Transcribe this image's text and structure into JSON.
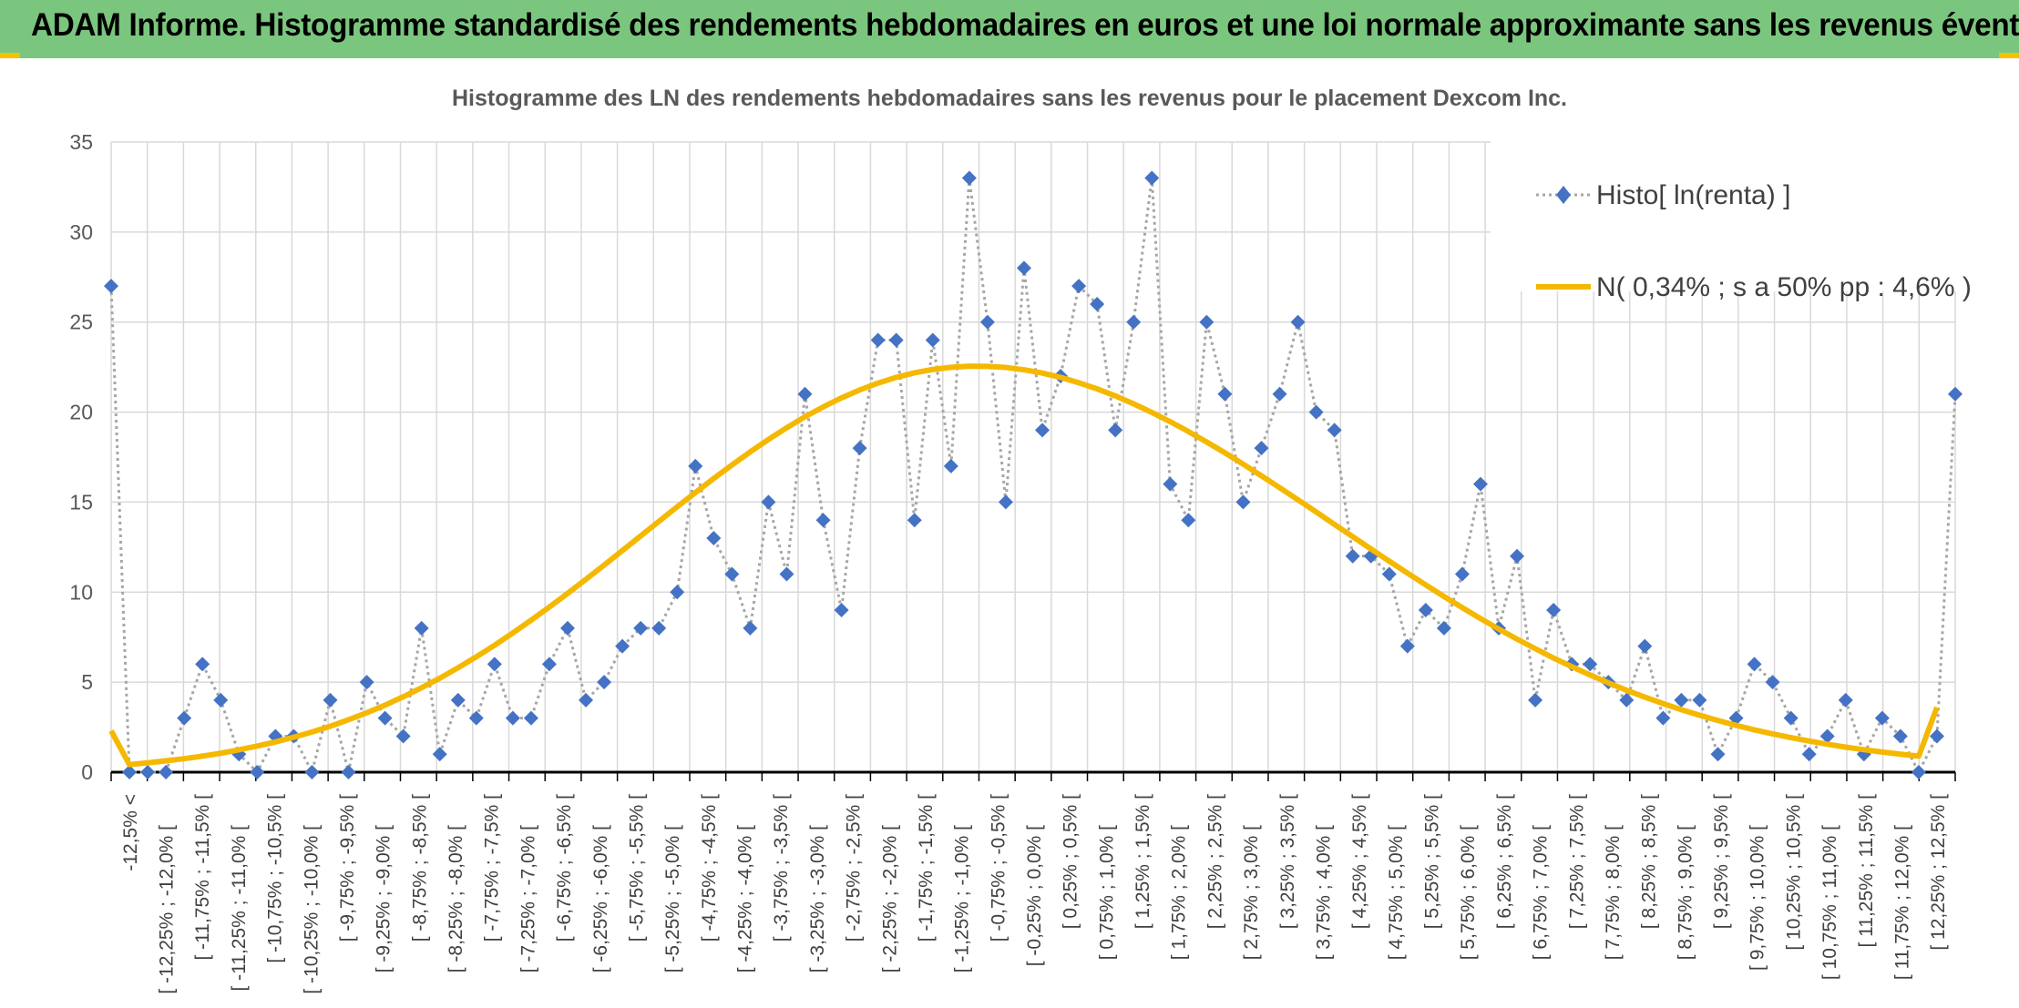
{
  "banner": {
    "title": "ADAM Informe. Histogramme standardisé des rendements hebdomadaires en euros et une loi normale approximante sans les revenus éventuels"
  },
  "colors": {
    "banner": "#7bc67e",
    "accent_corner": "#f2c200",
    "histogram_marker": "#4472c4",
    "histogram_line": "#a6a6a6",
    "normal_curve": "#f5b800",
    "grid": "#d9d9d9"
  },
  "chart_data": {
    "type": "line",
    "title": "Histogramme des LN des rendements hebdomadaires sans les revenus pour le placement Dexcom Inc.",
    "xlabel": "",
    "ylabel": "",
    "ylim": [
      0,
      35
    ],
    "yticks": [
      0,
      5,
      10,
      15,
      20,
      25,
      30,
      35
    ],
    "grid": true,
    "legend_position": "top-right",
    "x_tick_labels": [
      "-12,5% <",
      "[ -12,25% ; -12,0% [",
      "[ -11,75% ; -11,5% [",
      "[ -11,25% ; -11,0% [",
      "[ -10,75% ; -10,5% [",
      "[ -10,25% ; -10,0% [",
      "[ -9,75% ; -9,5% [",
      "[ -9,25% ; -9,0% [",
      "[ -8,75% ; -8,5% [",
      "[ -8,25% ; -8,0% [",
      "[ -7,75% ; -7,5% [",
      "[ -7,25% ; -7,0% [",
      "[ -6,75% ; -6,5% [",
      "[ -6,25% ; -6,0% [",
      "[ -5,75% ; -5,5% [",
      "[ -5,25% ; -5,0% [",
      "[ -4,75% ; -4,5% [",
      "[ -4,25% ; -4,0% [",
      "[ -3,75% ; -3,5% [",
      "[ -3,25% ; -3,0% [",
      "[ -2,75% ; -2,5% [",
      "[ -2,25% ; -2,0% [",
      "[ -1,75% ; -1,5% [",
      "[ -1,25% ; -1,0% [",
      "[ -0,75% ; -0,5% [",
      "[ -0,25% ; 0,0% [",
      "[ 0,25% ; 0,5% [",
      "[ 0,75% ; 1,0% [",
      "[ 1,25% ; 1,5% [",
      "[ 1,75% ; 2,0% [",
      "[ 2,25% ; 2,5% [",
      "[ 2,75% ; 3,0% [",
      "[ 3,25% ; 3,5% [",
      "[ 3,75% ; 4,0% [",
      "[ 4,25% ; 4,5% [",
      "[ 4,75% ; 5,0% [",
      "[ 5,25% ; 5,5% [",
      "[ 5,75% ; 6,0% [",
      "[ 6,25% ; 6,5% [",
      "[ 6,75% ; 7,0% [",
      "[ 7,25% ; 7,5% [",
      "[ 7,75% ; 8,0% [",
      "[ 8,25% ; 8,5% [",
      "[ 8,75% ; 9,0% [",
      "[ 9,25% ; 9,5% [",
      "[ 9,75% ; 10,0% [",
      "[ 10,25% ; 10,5% [",
      "[ 10,75% ; 11,0% [",
      "[ 11,25% ; 11,5% [",
      "[ 11,75% ; 12,0% [",
      "[ 12,25% ; 12,5% ["
    ],
    "series": [
      {
        "name": "Histo[ ln(renta) ]",
        "kind": "markers-dotted",
        "values": [
          27,
          0,
          0,
          0,
          3,
          6,
          4,
          1,
          0,
          2,
          2,
          0,
          4,
          0,
          5,
          3,
          2,
          8,
          1,
          4,
          3,
          6,
          3,
          3,
          6,
          8,
          4,
          5,
          7,
          8,
          8,
          10,
          17,
          13,
          11,
          8,
          15,
          11,
          21,
          14,
          9,
          18,
          24,
          24,
          14,
          24,
          17,
          33,
          25,
          15,
          28,
          19,
          22,
          27,
          26,
          19,
          25,
          33,
          16,
          14,
          25,
          21,
          15,
          18,
          21,
          25,
          20,
          19,
          12,
          12,
          11,
          7,
          9,
          8,
          11,
          16,
          8,
          12,
          4,
          9,
          6,
          6,
          5,
          4,
          7,
          3,
          4,
          4,
          1,
          3,
          6,
          5,
          3,
          1,
          2,
          4,
          1,
          3,
          2,
          0,
          2,
          21
        ]
      },
      {
        "name": "N( 0,34% ; s a 50% pp : 4,6% )",
        "kind": "line",
        "values": [
          2.3,
          0.42,
          0.52,
          0.63,
          0.75,
          0.89,
          1.05,
          1.24,
          1.45,
          1.68,
          1.94,
          2.23,
          2.55,
          2.91,
          3.3,
          3.72,
          4.19,
          4.69,
          5.22,
          5.8,
          6.41,
          7.05,
          7.73,
          8.44,
          9.17,
          9.93,
          10.71,
          11.5,
          12.31,
          13.12,
          13.93,
          14.74,
          15.53,
          16.31,
          17.06,
          17.79,
          18.48,
          19.13,
          19.74,
          20.29,
          20.79,
          21.23,
          21.61,
          21.93,
          22.18,
          22.37,
          22.49,
          22.55,
          22.54,
          22.48,
          22.35,
          22.17,
          21.93,
          21.63,
          21.29,
          20.9,
          20.46,
          19.98,
          19.47,
          18.92,
          18.34,
          17.74,
          17.11,
          16.46,
          15.8,
          15.13,
          14.45,
          13.76,
          13.08,
          12.4,
          11.72,
          11.06,
          10.4,
          9.76,
          9.14,
          8.53,
          7.95,
          7.39,
          6.86,
          6.34,
          5.86,
          5.4,
          4.96,
          4.55,
          4.17,
          3.81,
          3.47,
          3.16,
          2.87,
          2.6,
          2.35,
          2.13,
          1.92,
          1.73,
          1.55,
          1.39,
          1.25,
          1.12,
          1.0,
          0.89,
          3.6
        ]
      }
    ]
  }
}
